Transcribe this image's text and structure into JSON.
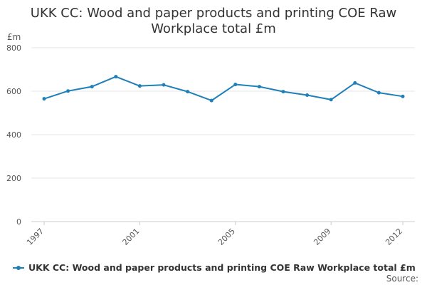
{
  "chart_data": {
    "type": "line",
    "title": "UKK CC: Wood and paper products and printing COE Raw Workplace total £m",
    "title_lines": [
      "UKK CC: Wood and paper products and printing COE Raw",
      "Workplace total £m"
    ],
    "ylabel": "£m",
    "xlabel": "",
    "ylim": [
      0,
      800
    ],
    "yticks": [
      0,
      200,
      400,
      600,
      800
    ],
    "xticks": [
      "1997",
      "2001",
      "2005",
      "2009",
      "2012"
    ],
    "grid": true,
    "legend_position": "bottom-left",
    "x": [
      1997,
      1998,
      1999,
      2000,
      2001,
      2002,
      2003,
      2004,
      2005,
      2006,
      2007,
      2008,
      2009,
      2010,
      2011,
      2012
    ],
    "series": [
      {
        "name": "UKK CC: Wood and paper products and printing COE Raw Workplace total £m",
        "color": "#1f7fb8",
        "values": [
          565,
          601,
          621,
          667,
          624,
          629,
          598,
          557,
          631,
          621,
          598,
          582,
          561,
          638,
          593,
          576
        ]
      }
    ]
  },
  "source_label": "Source:"
}
